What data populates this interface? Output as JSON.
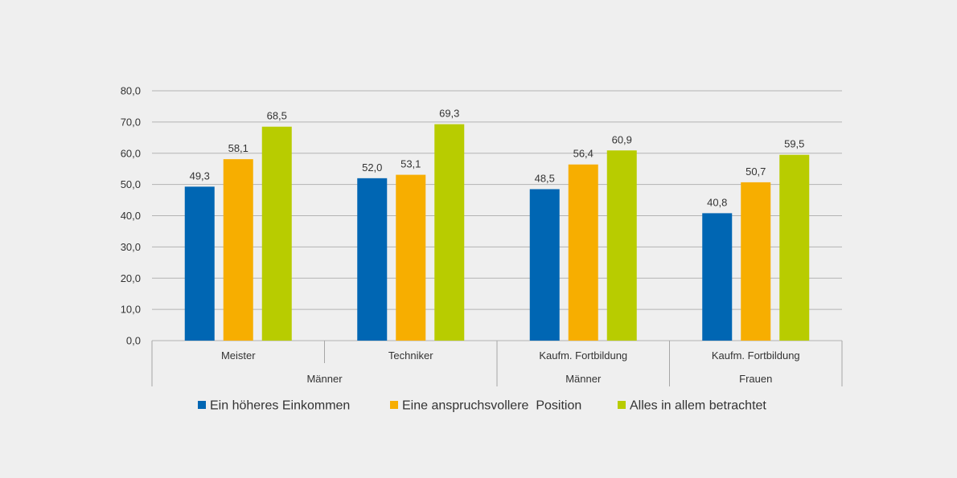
{
  "chart_data": {
    "type": "bar",
    "categories": [
      "Meister",
      "Techniker",
      "Kaufm. Fortbildung",
      "Kaufm. Fortbildung"
    ],
    "groups": [
      {
        "label": "Männer",
        "span": [
          0,
          1
        ]
      },
      {
        "label": "Männer",
        "span": [
          2,
          2
        ]
      },
      {
        "label": "Frauen",
        "span": [
          3,
          3
        ]
      }
    ],
    "series": [
      {
        "name": "Ein höheres Einkommen",
        "color": "#0066b3",
        "values": [
          49.3,
          52.0,
          48.5,
          40.8
        ]
      },
      {
        "name": "Eine anspruchsvollere  Position",
        "color": "#f7ae00",
        "values": [
          58.1,
          53.1,
          56.4,
          50.7
        ]
      },
      {
        "name": "Alles in allem betrachtet",
        "color": "#b8cc00",
        "values": [
          68.5,
          69.3,
          60.9,
          59.5
        ]
      }
    ],
    "ylim": [
      0,
      80
    ],
    "yticks": [
      0,
      10,
      20,
      30,
      40,
      50,
      60,
      70,
      80
    ],
    "decimal_separator": ",",
    "grid": true,
    "legend_position": "bottom"
  }
}
